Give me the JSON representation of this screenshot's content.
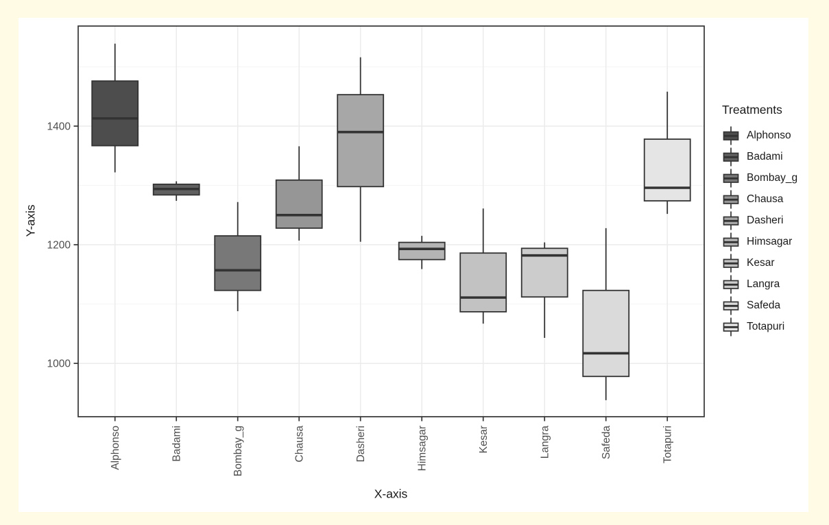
{
  "colors": {
    "page_bg": "#FFFBE5",
    "plot_bg": "#FFFFFF",
    "panel_border": "#333333",
    "grid_major": "#EBEBEB",
    "grid_minor": "#F5F5F5",
    "box_stroke": "#333333",
    "tick_label": "#4D4D4D",
    "title_text": "#1A1A1A"
  },
  "chart_data": {
    "type": "boxplot",
    "xlabel": "X-axis",
    "ylabel": "Y-axis",
    "legend_title": "Treatments",
    "legend_position": "right",
    "grid": true,
    "ylim": [
      910,
      1569
    ],
    "y_ticks": [
      1000,
      1200,
      1400
    ],
    "y_minor_gridlines": [
      1100,
      1300,
      1500
    ],
    "categories": [
      "Alphonso",
      "Badami",
      "Bombay_g",
      "Chausa",
      "Dasheri",
      "Himsagar",
      "Kesar",
      "Langra",
      "Safeda",
      "Totapuri"
    ],
    "series": [
      {
        "name": "Alphonso",
        "fill": "#4D4D4D",
        "min": 1322,
        "q1": 1367,
        "median": 1413,
        "q3": 1476,
        "max": 1539
      },
      {
        "name": "Badami",
        "fill": "#606060",
        "min": 1274,
        "q1": 1284,
        "median": 1294,
        "q3": 1302,
        "max": 1307
      },
      {
        "name": "Bombay_g",
        "fill": "#787878",
        "min": 1088,
        "q1": 1123,
        "median": 1157,
        "q3": 1215,
        "max": 1272
      },
      {
        "name": "Chausa",
        "fill": "#969696",
        "min": 1207,
        "q1": 1228,
        "median": 1250,
        "q3": 1309,
        "max": 1366
      },
      {
        "name": "Dasheri",
        "fill": "#A7A7A7",
        "min": 1205,
        "q1": 1298,
        "median": 1390,
        "q3": 1453,
        "max": 1516
      },
      {
        "name": "Himsagar",
        "fill": "#B4B4B4",
        "min": 1159,
        "q1": 1175,
        "median": 1193,
        "q3": 1204,
        "max": 1215
      },
      {
        "name": "Kesar",
        "fill": "#C2C2C2",
        "min": 1067,
        "q1": 1087,
        "median": 1111,
        "q3": 1186,
        "max": 1261
      },
      {
        "name": "Langra",
        "fill": "#CCCCCC",
        "min": 1043,
        "q1": 1112,
        "median": 1182,
        "q3": 1194,
        "max": 1204
      },
      {
        "name": "Safeda",
        "fill": "#DADADA",
        "min": 938,
        "q1": 978,
        "median": 1017,
        "q3": 1123,
        "max": 1228
      },
      {
        "name": "Totapuri",
        "fill": "#E5E5E5",
        "min": 1252,
        "q1": 1274,
        "median": 1296,
        "q3": 1378,
        "max": 1458
      }
    ]
  }
}
